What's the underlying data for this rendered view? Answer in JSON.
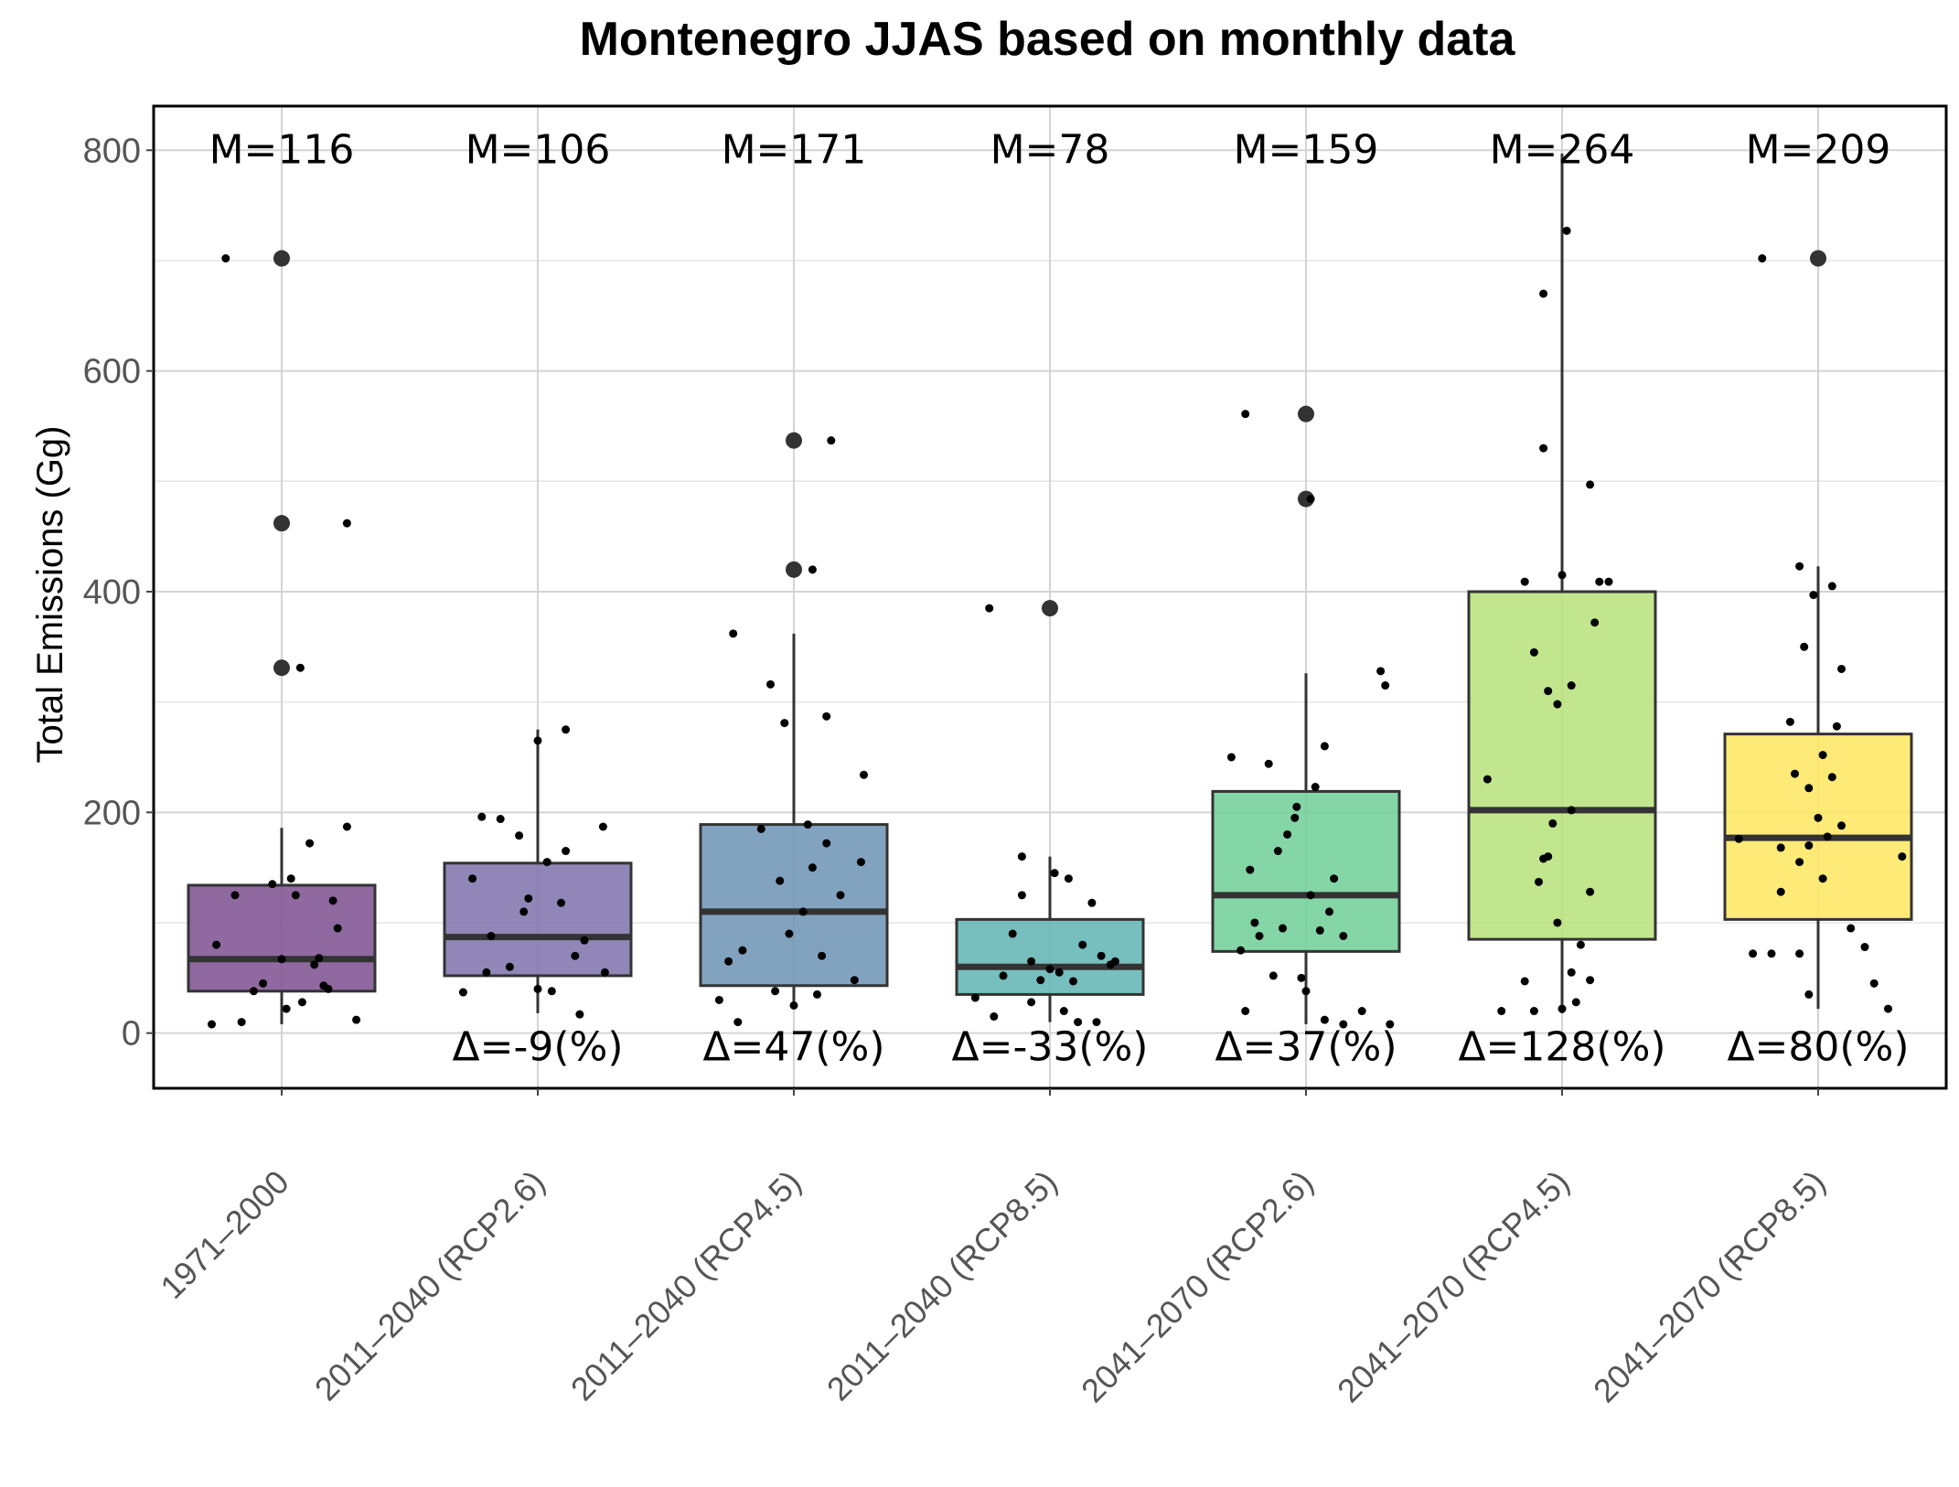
{
  "chart_data": {
    "type": "box",
    "title": "Montenegro JJAS based on monthly data",
    "xlabel": "",
    "ylabel": "Total Emissions (Gg)",
    "ylim": [
      -50,
      840
    ],
    "yticks": [
      0,
      200,
      400,
      600,
      800
    ],
    "grid": true,
    "categories": [
      "1971–2000",
      "2011–2040 (RCP2.6)",
      "2011–2040 (RCP4.5)",
      "2011–2040 (RCP8.5)",
      "2041–2070 (RCP2.6)",
      "2041–2070 (RCP4.5)",
      "2041–2070 (RCP8.5)"
    ],
    "colors": [
      "#7b4f8f",
      "#7c72ac",
      "#6c93b5",
      "#5fb3b3",
      "#6ecf98",
      "#b6e27a",
      "#fde65f"
    ],
    "mean_labels": [
      "M=116",
      "M=106",
      "M=171",
      "M=78",
      "M=159",
      "M=264",
      "M=209"
    ],
    "delta_labels": [
      "",
      "Δ=-9(%)",
      "Δ=47(%)",
      "Δ=-33(%)",
      "Δ=37(%)",
      "Δ=128(%)",
      "Δ=80(%)"
    ],
    "boxes": [
      {
        "q1": 38,
        "median": 67,
        "q3": 134,
        "whisker_low": 8,
        "whisker_high": 186,
        "outliers": [
          331,
          462,
          702
        ]
      },
      {
        "q1": 52,
        "median": 87,
        "q3": 154,
        "whisker_low": 18,
        "whisker_high": 275,
        "outliers": []
      },
      {
        "q1": 43,
        "median": 110,
        "q3": 189,
        "whisker_low": 25,
        "whisker_high": 362,
        "outliers": [
          420,
          537
        ]
      },
      {
        "q1": 35,
        "median": 60,
        "q3": 103,
        "whisker_low": 10,
        "whisker_high": 160,
        "outliers": [
          385
        ]
      },
      {
        "q1": 74,
        "median": 125,
        "q3": 219,
        "whisker_low": 8,
        "whisker_high": 326,
        "outliers": [
          484,
          561
        ]
      },
      {
        "q1": 85,
        "median": 202,
        "q3": 400,
        "whisker_low": 18,
        "whisker_high": 797,
        "outliers": []
      },
      {
        "q1": 103,
        "median": 177,
        "q3": 271,
        "whisker_low": 22,
        "whisker_high": 423,
        "outliers": [
          702
        ]
      }
    ],
    "jitter_points": [
      [
        [
          -0.6,
          702
        ],
        [
          0.2,
          331
        ],
        [
          0.7,
          462
        ],
        [
          0.7,
          187
        ],
        [
          -0.75,
          8
        ],
        [
          -0.43,
          10
        ],
        [
          -0.3,
          38
        ],
        [
          -0.1,
          135
        ],
        [
          0.0,
          67
        ],
        [
          0.1,
          140
        ],
        [
          0.15,
          125
        ],
        [
          0.3,
          172
        ],
        [
          0.35,
          62
        ],
        [
          0.5,
          40
        ],
        [
          0.55,
          120
        ],
        [
          -0.7,
          80
        ],
        [
          -0.5,
          125
        ],
        [
          0.05,
          22
        ],
        [
          0.22,
          28
        ],
        [
          0.4,
          68
        ],
        [
          0.6,
          95
        ],
        [
          0.8,
          12
        ],
        [
          -0.2,
          45
        ],
        [
          0.45,
          43
        ]
      ],
      [
        [
          -0.6,
          196
        ],
        [
          -0.4,
          194
        ],
        [
          -0.2,
          179
        ],
        [
          0.3,
          275
        ],
        [
          0.0,
          265
        ],
        [
          -0.7,
          140
        ],
        [
          -0.5,
          88
        ],
        [
          -0.3,
          60
        ],
        [
          -0.1,
          122
        ],
        [
          0.1,
          155
        ],
        [
          0.25,
          118
        ],
        [
          0.4,
          70
        ],
        [
          0.5,
          84
        ],
        [
          0.7,
          187
        ],
        [
          0.72,
          55
        ],
        [
          -0.55,
          55
        ],
        [
          0.0,
          40
        ],
        [
          0.45,
          17
        ],
        [
          -0.8,
          37
        ],
        [
          -0.15,
          110
        ],
        [
          0.15,
          38
        ],
        [
          0.3,
          165
        ]
      ],
      [
        [
          -0.65,
          362
        ],
        [
          -0.25,
          316
        ],
        [
          -0.1,
          281
        ],
        [
          0.35,
          287
        ],
        [
          0.2,
          420
        ],
        [
          0.4,
          537
        ],
        [
          0.75,
          234
        ],
        [
          -0.55,
          75
        ],
        [
          -0.35,
          185
        ],
        [
          -0.15,
          138
        ],
        [
          -0.05,
          90
        ],
        [
          0.1,
          110
        ],
        [
          0.2,
          150
        ],
        [
          0.35,
          172
        ],
        [
          0.5,
          125
        ],
        [
          0.65,
          48
        ],
        [
          0.72,
          155
        ],
        [
          -0.8,
          30
        ],
        [
          -0.7,
          65
        ],
        [
          0.0,
          25
        ],
        [
          0.25,
          35
        ],
        [
          -0.6,
          10
        ],
        [
          -0.2,
          38
        ],
        [
          0.15,
          189
        ],
        [
          0.3,
          70
        ]
      ],
      [
        [
          -0.65,
          385
        ],
        [
          -0.4,
          90
        ],
        [
          -0.3,
          125
        ],
        [
          -0.3,
          160
        ],
        [
          0.05,
          145
        ],
        [
          0.2,
          140
        ],
        [
          -0.5,
          52
        ],
        [
          -0.2,
          65
        ],
        [
          -0.1,
          48
        ],
        [
          0.0,
          58
        ],
        [
          0.1,
          55
        ],
        [
          0.25,
          47
        ],
        [
          0.35,
          80
        ],
        [
          0.45,
          118
        ],
        [
          0.55,
          70
        ],
        [
          0.65,
          62
        ],
        [
          -0.8,
          32
        ],
        [
          -0.6,
          15
        ],
        [
          -0.2,
          28
        ],
        [
          0.15,
          20
        ],
        [
          0.3,
          10
        ],
        [
          0.5,
          10
        ],
        [
          0.7,
          65
        ]
      ],
      [
        [
          -0.65,
          561
        ],
        [
          0.05,
          484
        ],
        [
          0.8,
          328
        ],
        [
          0.85,
          315
        ],
        [
          0.2,
          260
        ],
        [
          -0.8,
          250
        ],
        [
          -0.4,
          244
        ],
        [
          -0.1,
          205
        ],
        [
          0.1,
          223
        ],
        [
          -0.6,
          148
        ],
        [
          -0.3,
          165
        ],
        [
          -0.2,
          180
        ],
        [
          -0.12,
          195
        ],
        [
          0.05,
          125
        ],
        [
          0.15,
          93
        ],
        [
          0.25,
          110
        ],
        [
          0.3,
          140
        ],
        [
          0.4,
          88
        ],
        [
          -0.5,
          88
        ],
        [
          -0.55,
          100
        ],
        [
          -0.7,
          75
        ],
        [
          -0.35,
          52
        ],
        [
          -0.05,
          50
        ],
        [
          0.0,
          38
        ],
        [
          0.2,
          12
        ],
        [
          0.4,
          8
        ],
        [
          -0.65,
          20
        ],
        [
          0.6,
          20
        ],
        [
          0.9,
          8
        ],
        [
          -0.25,
          95
        ]
      ],
      [
        [
          -0.2,
          670
        ],
        [
          0.05,
          727
        ],
        [
          -0.2,
          530
        ],
        [
          0.3,
          497
        ],
        [
          0.4,
          409
        ],
        [
          -0.4,
          409
        ],
        [
          0.0,
          415
        ],
        [
          -0.3,
          345
        ],
        [
          0.35,
          372
        ],
        [
          -0.15,
          310
        ],
        [
          0.1,
          315
        ],
        [
          -0.05,
          298
        ],
        [
          -0.8,
          230
        ],
        [
          -0.1,
          190
        ],
        [
          -0.15,
          160
        ],
        [
          -0.2,
          158
        ],
        [
          -0.25,
          137
        ],
        [
          -0.05,
          100
        ],
        [
          0.1,
          202
        ],
        [
          0.3,
          128
        ],
        [
          -0.4,
          47
        ],
        [
          0.1,
          55
        ],
        [
          0.3,
          48
        ],
        [
          -0.3,
          20
        ],
        [
          0.0,
          22
        ],
        [
          0.15,
          28
        ],
        [
          0.2,
          80
        ],
        [
          -0.65,
          20
        ],
        [
          0.5,
          409
        ]
      ],
      [
        [
          -0.6,
          702
        ],
        [
          -0.2,
          423
        ],
        [
          -0.05,
          397
        ],
        [
          0.15,
          405
        ],
        [
          -0.15,
          350
        ],
        [
          0.25,
          330
        ],
        [
          0.2,
          278
        ],
        [
          -0.3,
          282
        ],
        [
          -0.25,
          235
        ],
        [
          -0.1,
          222
        ],
        [
          0.05,
          252
        ],
        [
          0.15,
          232
        ],
        [
          -0.4,
          168
        ],
        [
          -0.2,
          155
        ],
        [
          -0.1,
          170
        ],
        [
          0.0,
          195
        ],
        [
          0.1,
          178
        ],
        [
          0.25,
          188
        ],
        [
          -0.4,
          128
        ],
        [
          0.05,
          140
        ],
        [
          0.35,
          95
        ],
        [
          0.5,
          78
        ],
        [
          0.6,
          45
        ],
        [
          -0.7,
          72
        ],
        [
          -0.5,
          72
        ],
        [
          -0.2,
          72
        ],
        [
          -0.1,
          35
        ],
        [
          0.75,
          22
        ],
        [
          0.9,
          160
        ],
        [
          -0.85,
          176
        ]
      ]
    ]
  }
}
